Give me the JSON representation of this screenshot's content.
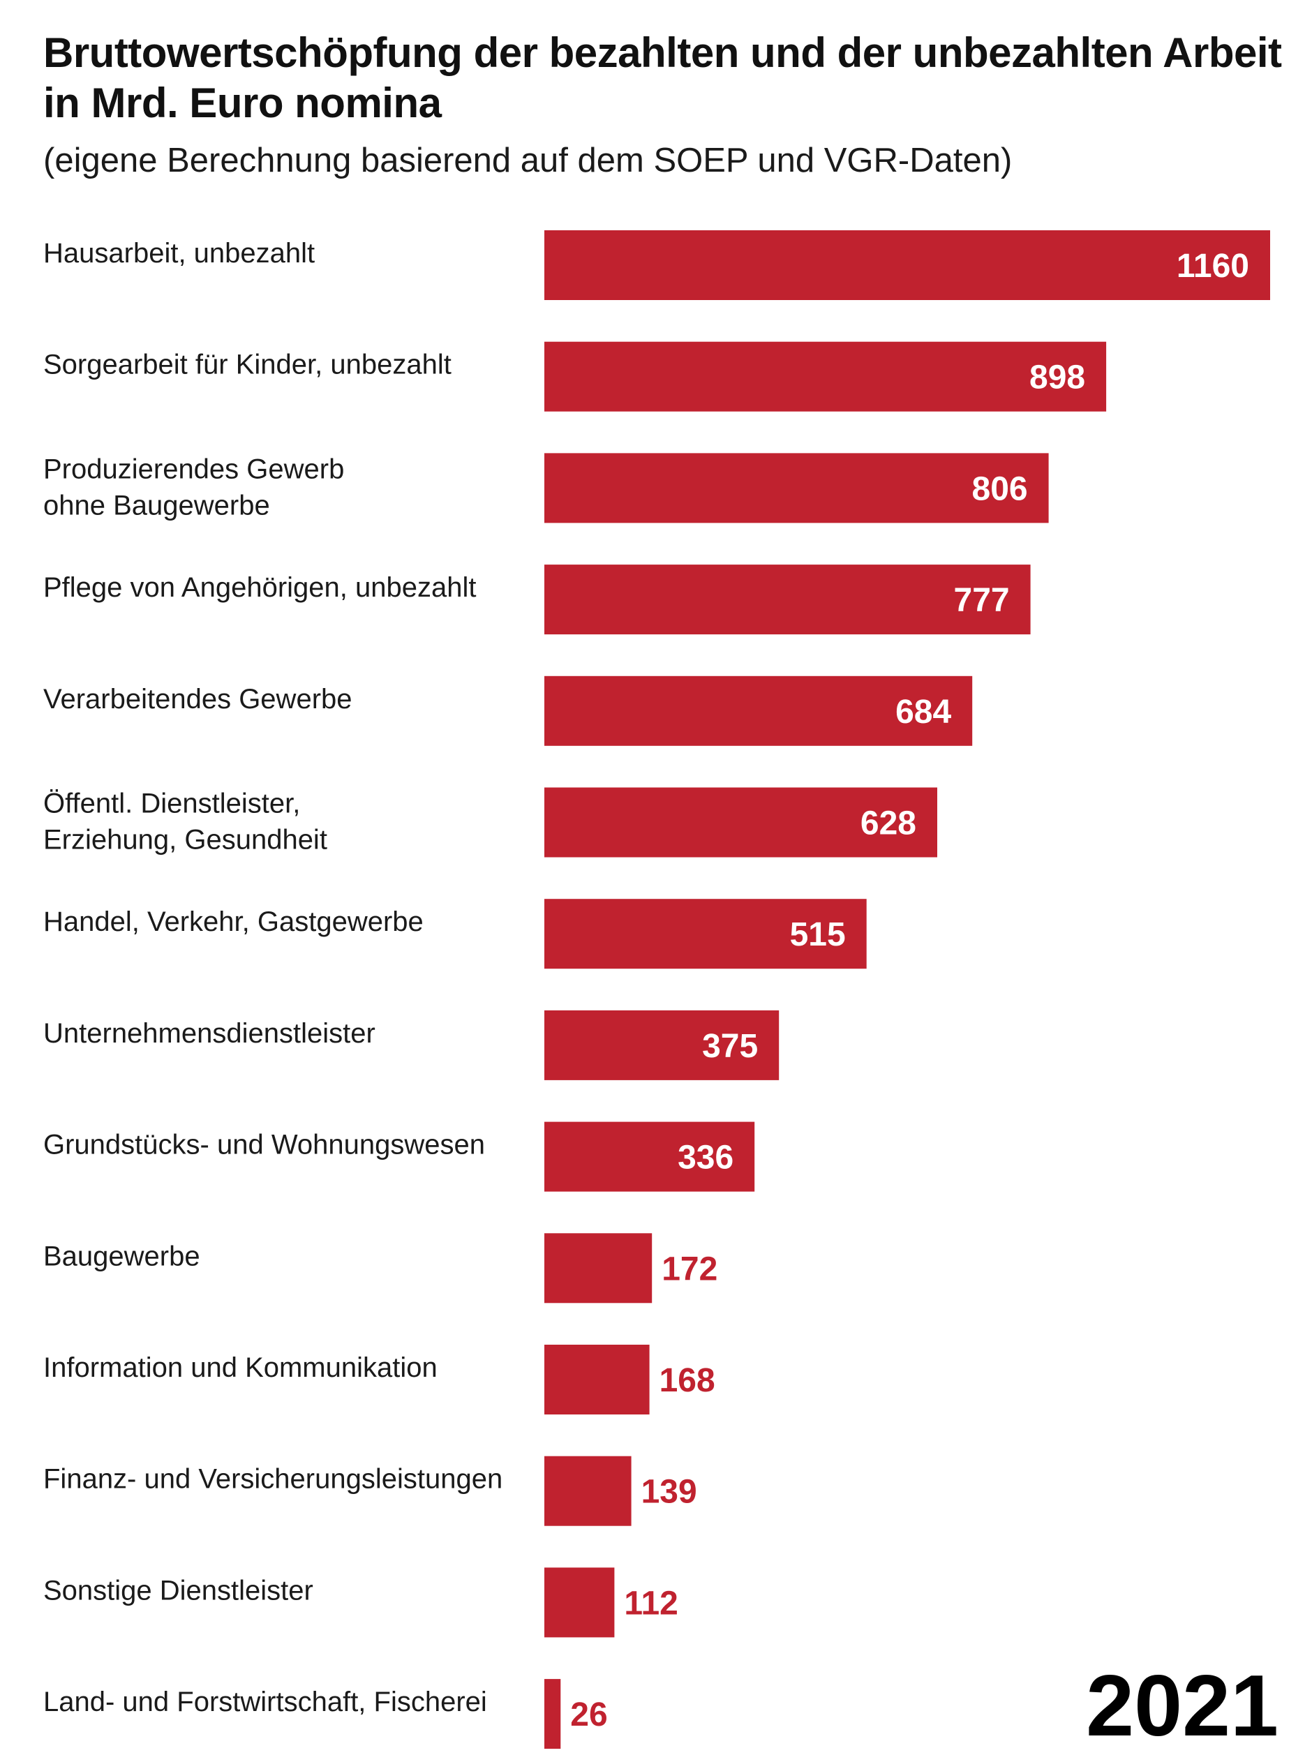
{
  "colors": {
    "bar": "#c0222f",
    "value_inside": "#ffffff",
    "value_outside": "#c0222f"
  },
  "chart_data": {
    "type": "bar",
    "orientation": "horizontal",
    "title": "Bruttowertschöpfung der bezahlten und der unbezahlten Arbeit in Mrd. Euro nomina",
    "subtitle": "(eigene Berechnung basierend auf dem SOEP und VGR-Daten)",
    "categories": [
      [
        "Hausarbeit, unbezahlt"
      ],
      [
        "Sorgearbeit für Kinder, unbezahlt"
      ],
      [
        "Produzierendes Gewerb",
        "ohne Baugewerbe"
      ],
      [
        "Pflege von Angehörigen, unbezahlt"
      ],
      [
        "Verarbeitendes Gewerbe"
      ],
      [
        "Öffentl. Dienstleister,",
        "Erziehung, Gesundheit"
      ],
      [
        "Handel, Verkehr, Gastgewerbe"
      ],
      [
        "Unternehmensdienstleister"
      ],
      [
        "Grundstücks- und Wohnungswesen"
      ],
      [
        "Baugewerbe"
      ],
      [
        "Information und Kommunikation"
      ],
      [
        "Finanz- und Versicherungsleistungen"
      ],
      [
        "Sonstige Dienstleister"
      ],
      [
        "Land- und Forstwirtschaft, Fischerei"
      ]
    ],
    "values": [
      1160,
      898,
      806,
      777,
      684,
      628,
      515,
      375,
      336,
      172,
      168,
      139,
      112,
      26
    ],
    "xlim": [
      0,
      1160
    ],
    "grid": false,
    "legend": "none",
    "annotation": "2021"
  }
}
